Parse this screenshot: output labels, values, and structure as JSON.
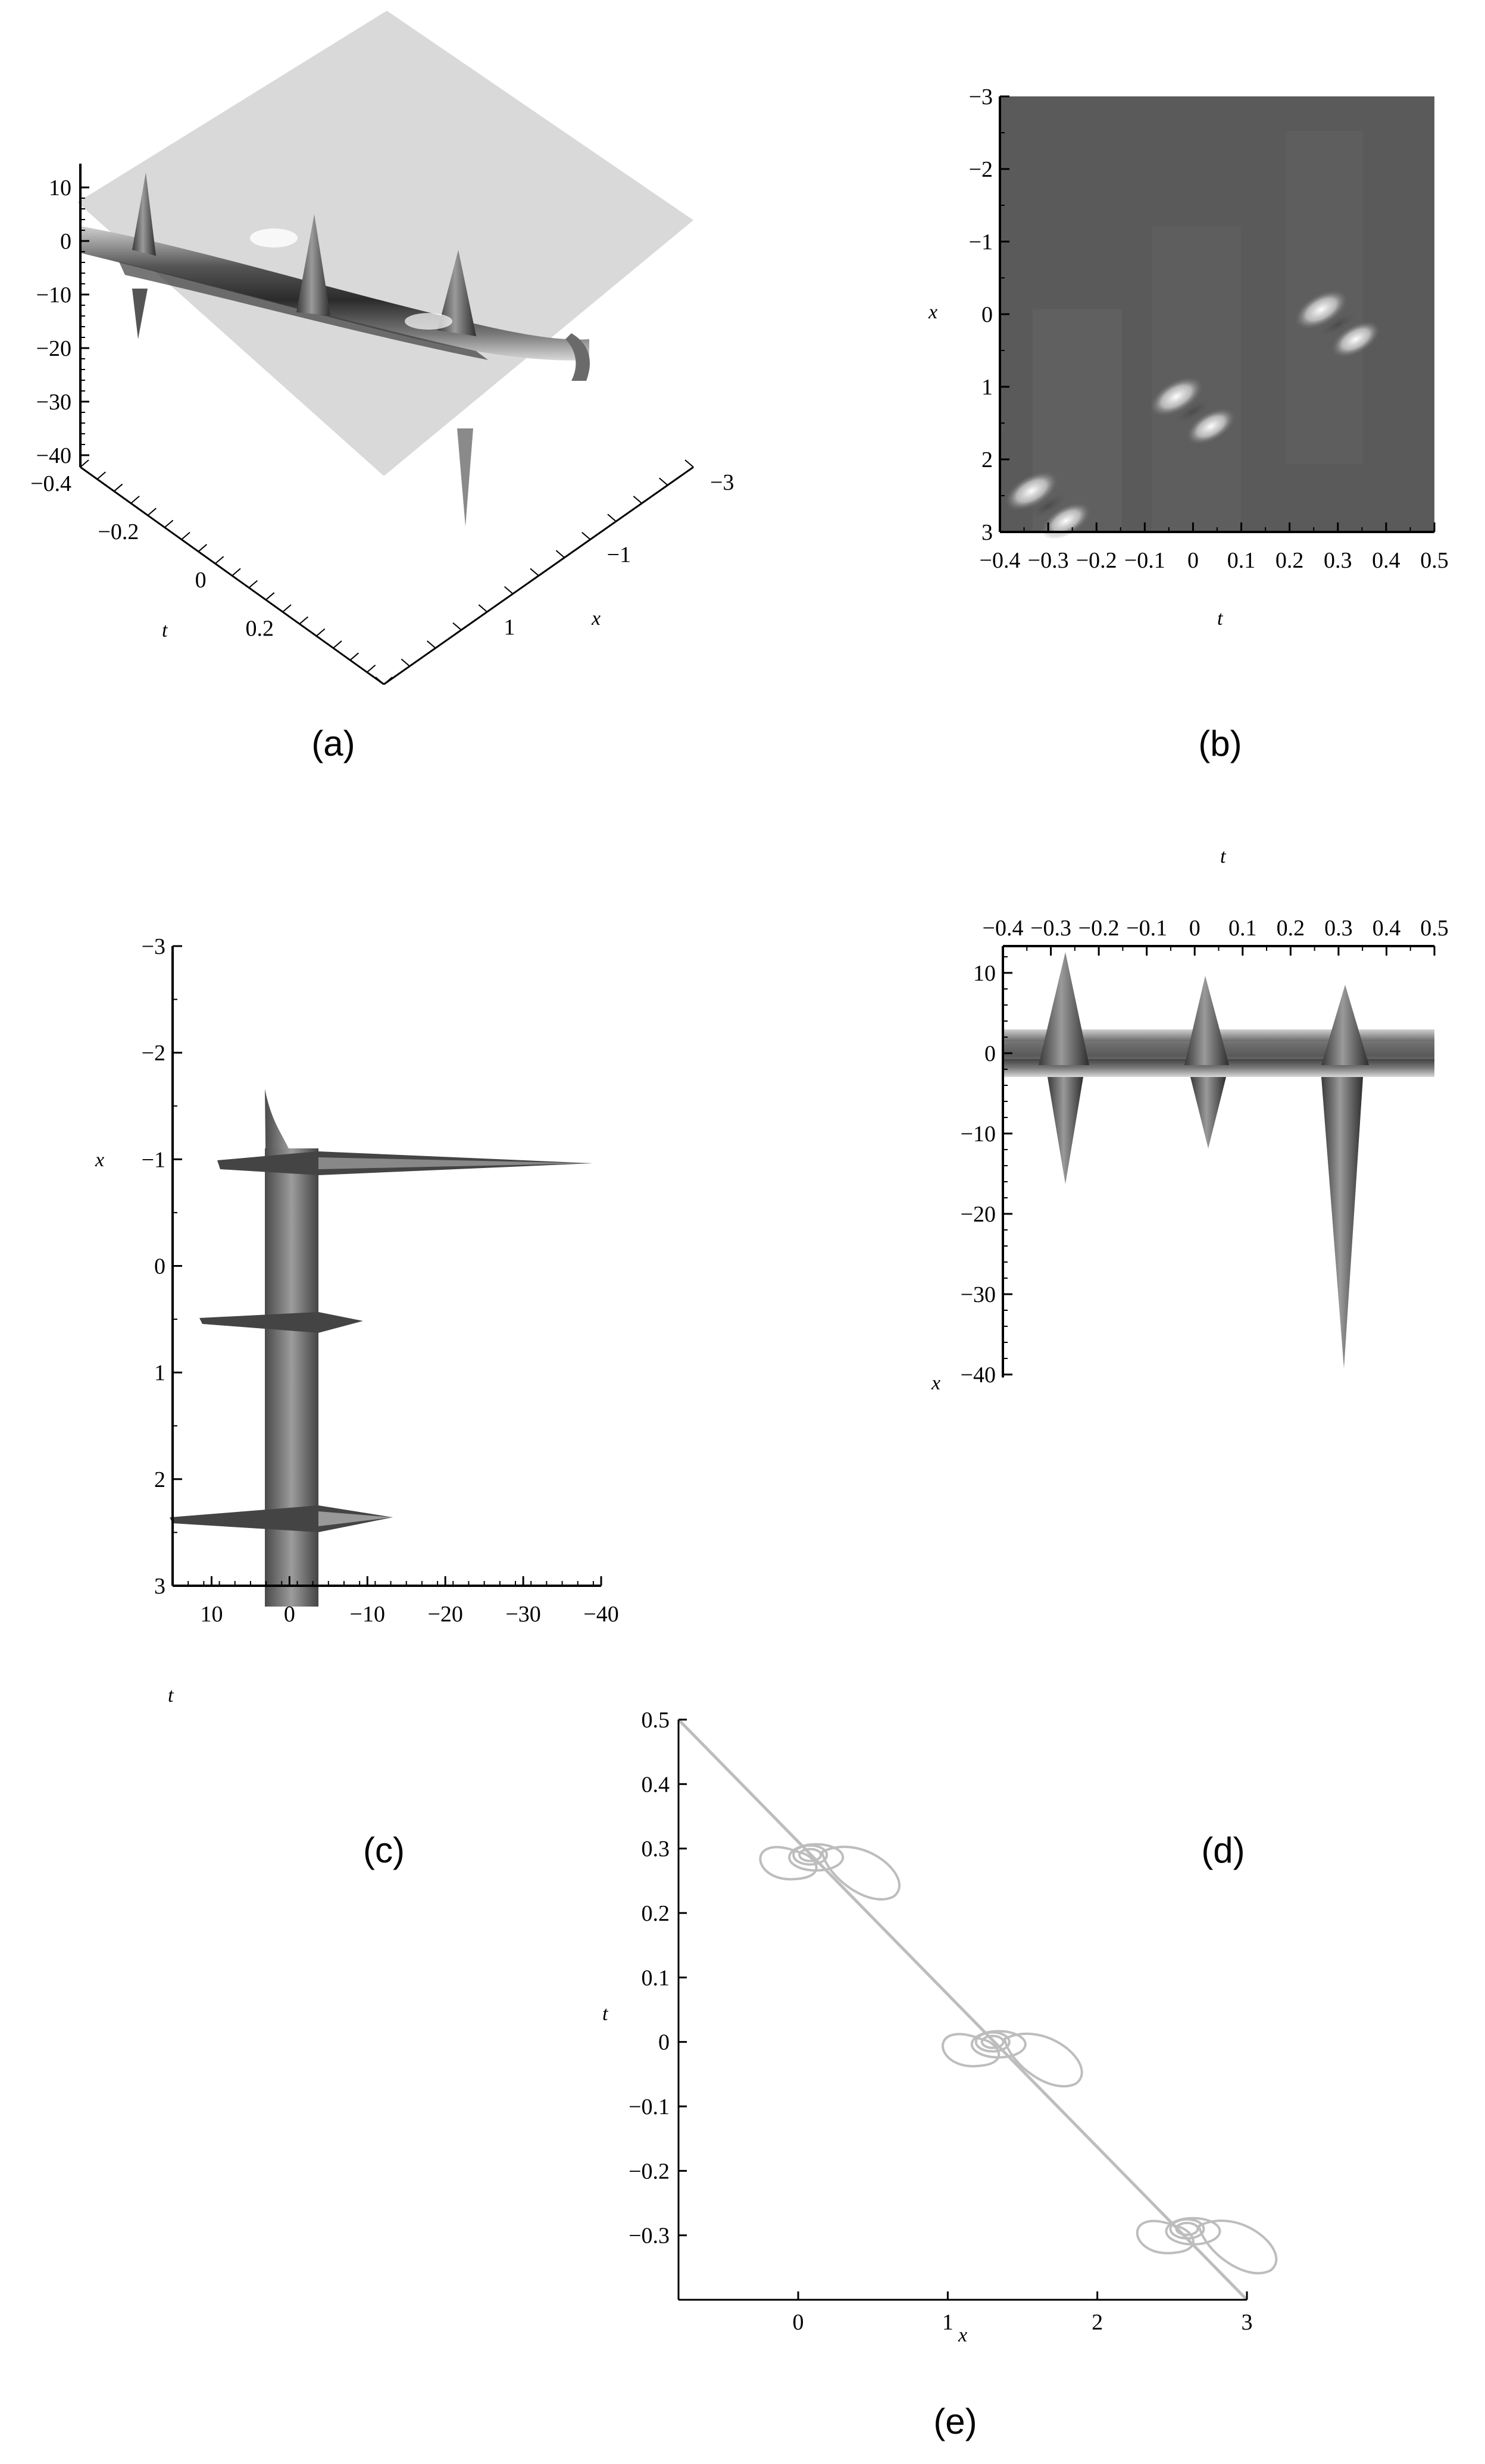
{
  "chart_data": [
    {
      "panel": "a",
      "type": "surface-3d",
      "label": "(a)",
      "axes": {
        "z": {
          "ticks": [
            "10",
            "0",
            "−10",
            "−20",
            "−30",
            "−40"
          ],
          "range": [
            -40,
            13
          ]
        },
        "t": {
          "label": "t",
          "ticks": [
            "−0.4",
            "−0.2",
            "0",
            "0.2"
          ],
          "range": [
            -0.4,
            0.5
          ]
        },
        "x": {
          "label": "x",
          "ticks": [
            "−3",
            "−1",
            "1"
          ],
          "range": [
            -3,
            3
          ]
        }
      },
      "peaks": [
        {
          "t": -0.3,
          "x": 2.6,
          "max": 12,
          "min": -15
        },
        {
          "t": 0.0,
          "x": 1.3,
          "max": 10,
          "min": -10
        },
        {
          "t": 0.3,
          "x": 0.1,
          "max": 8,
          "min": -40
        }
      ]
    },
    {
      "panel": "b",
      "type": "heatmap",
      "label": "(b)",
      "axes": {
        "t": {
          "label": "t",
          "ticks": [
            "−0.4",
            "−0.3",
            "−0.2",
            "−0.1",
            "0",
            "0.1",
            "0.2",
            "0.3",
            "0.4",
            "0.5"
          ],
          "range": [
            -0.4,
            0.5
          ]
        },
        "x": {
          "label": "x",
          "ticks": [
            "−3",
            "−2",
            "−1",
            "0",
            "1",
            "2",
            "3"
          ],
          "range": [
            -3,
            3
          ]
        }
      },
      "peaks": [
        {
          "t": -0.3,
          "x": 2.6
        },
        {
          "t": 0.0,
          "x": 1.3
        },
        {
          "t": 0.3,
          "x": 0.1
        }
      ]
    },
    {
      "panel": "c",
      "type": "surface-3d-projection",
      "label": "(c)",
      "axes": {
        "x": {
          "label": "x",
          "ticks": [
            "−3",
            "−2",
            "−1",
            "0",
            "1",
            "2",
            "3"
          ],
          "range": [
            -3,
            3
          ]
        },
        "t": {
          "label": "t",
          "ticks": [
            "10",
            "0",
            "−10",
            "−20",
            "−30",
            "−40"
          ],
          "range": [
            -40,
            15
          ]
        }
      },
      "peaks": [
        {
          "x": 0.1,
          "max": 8,
          "min": -40
        },
        {
          "x": 1.3,
          "max": 10,
          "min": -12
        },
        {
          "x": 2.6,
          "max": 12,
          "min": -15
        }
      ]
    },
    {
      "panel": "d",
      "type": "surface-3d-projection",
      "label": "(d)",
      "axes": {
        "t": {
          "label": "t",
          "ticks": [
            "−0.4",
            "−0.3",
            "−0.2",
            "−0.1",
            "0",
            "0.1",
            "0.2",
            "0.3",
            "0.4",
            "0.5"
          ],
          "range": [
            -0.4,
            0.5
          ]
        },
        "z": {
          "ticks": [
            "10",
            "0",
            "−10",
            "−20",
            "−30",
            "−40"
          ],
          "range": [
            -40,
            13
          ]
        },
        "x": {
          "label": "x"
        }
      },
      "peaks": [
        {
          "t": -0.3,
          "max": 13,
          "min": -15
        },
        {
          "t": 0.0,
          "max": 11,
          "min": -11
        },
        {
          "t": 0.3,
          "max": 9,
          "min": -40
        }
      ]
    },
    {
      "panel": "e",
      "type": "contour",
      "label": "(e)",
      "axes": {
        "x": {
          "label": "x",
          "ticks": [
            "0",
            "1",
            "2",
            "3"
          ],
          "range": [
            -0.8,
            3
          ]
        },
        "t": {
          "label": "t",
          "ticks": [
            "0.5",
            "0.4",
            "0.3",
            "0.2",
            "0.1",
            "0",
            "−0.1",
            "−0.2",
            "−0.3"
          ],
          "range": [
            -0.4,
            0.5
          ]
        }
      },
      "line": [
        [
          -0.8,
          0.5
        ],
        [
          3,
          -0.4
        ]
      ],
      "centers": [
        {
          "x": 0.08,
          "t": 0.29
        },
        {
          "x": 1.3,
          "t": 0.0
        },
        {
          "x": 2.6,
          "t": -0.29
        }
      ]
    }
  ]
}
